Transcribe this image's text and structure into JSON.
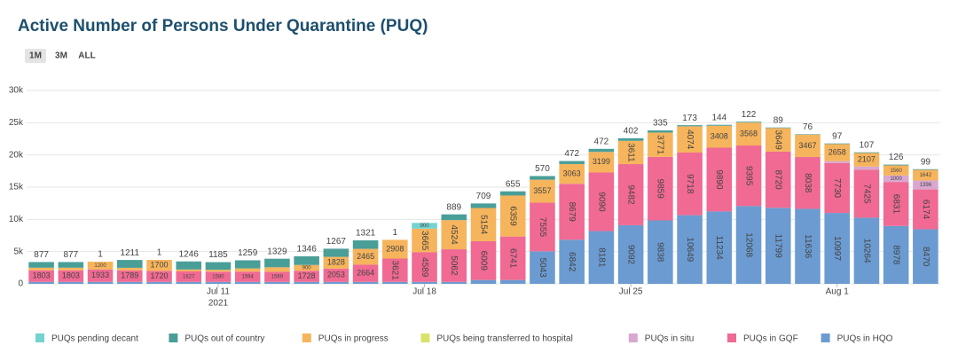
{
  "chart_data": {
    "type": "stacked_bar",
    "title": "Active Number of Persons Under Quarantine (PUQ)",
    "range_buttons": [
      "1M",
      "3M",
      "ALL"
    ],
    "x": [
      "2021-07-05",
      "2021-07-06",
      "2021-07-07",
      "2021-07-08",
      "2021-07-09",
      "2021-07-10",
      "2021-07-11",
      "2021-07-12",
      "2021-07-13",
      "2021-07-14",
      "2021-07-15",
      "2021-07-16",
      "2021-07-17",
      "2021-07-18",
      "2021-07-19",
      "2021-07-20",
      "2021-07-21",
      "2021-07-22",
      "2021-07-23",
      "2021-07-24",
      "2021-07-25",
      "2021-07-26",
      "2021-07-27",
      "2021-07-28",
      "2021-07-29",
      "2021-07-30",
      "2021-07-31",
      "2021-08-01",
      "2021-08-02",
      "2021-08-03",
      "2021-08-04"
    ],
    "xticks": [
      {
        "value": "2021-07-11",
        "label": "Jul 11"
      },
      {
        "value": "2021-07-18",
        "label": "Jul 18"
      },
      {
        "value": "2021-07-25",
        "label": "Jul 25"
      },
      {
        "value": "2021-08-01",
        "label": "Aug 1"
      }
    ],
    "xtick_year": "2021",
    "ylim": [
      0,
      30000
    ],
    "yticks": [
      0,
      {
        "value": 5000,
        "label": "5k"
      },
      {
        "value": 10000,
        "label": "10k"
      },
      {
        "value": 15000,
        "label": "15k"
      },
      {
        "value": 20000,
        "label": "20k"
      },
      {
        "value": 25000,
        "label": "25k"
      },
      {
        "value": 30000,
        "label": "30k"
      }
    ],
    "grid": true,
    "legend": "bottom",
    "series": [
      {
        "name": "PUQs pending decant",
        "color": "#72d3cf",
        "values": [
          null,
          null,
          null,
          null,
          null,
          null,
          null,
          null,
          null,
          null,
          null,
          null,
          null,
          900,
          null,
          null,
          null,
          null,
          null,
          null,
          null,
          null,
          null,
          null,
          null,
          null,
          null,
          null,
          null,
          null,
          null
        ]
      },
      {
        "name": "PUQs out of country",
        "color": "#4a9e98",
        "top_labels": true,
        "values": [
          877,
          877,
          1,
          1211,
          1,
          1246,
          1185,
          1259,
          1329,
          1346,
          1267,
          1321,
          1,
          null,
          889,
          709,
          655,
          570,
          472,
          472,
          402,
          335,
          173,
          144,
          122,
          89,
          76,
          97,
          107,
          126,
          99
        ]
      },
      {
        "name": "PUQs in progress",
        "color": "#f6b45c",
        "values": [
          400,
          400,
          1200,
          400,
          1700,
          300,
          300,
          500,
          700,
          900,
          1828,
          2465,
          2908,
          3665,
          4524,
          5154,
          6359,
          3557,
          3063,
          3199,
          3611,
          3771,
          4074,
          3408,
          3568,
          3649,
          3467,
          2658,
          2107,
          1560,
          1642
        ]
      },
      {
        "name": "PUQs being transferred to hospital",
        "color": "#d8e26b",
        "values": [
          null,
          null,
          null,
          null,
          null,
          null,
          null,
          null,
          null,
          null,
          null,
          null,
          null,
          null,
          null,
          null,
          null,
          null,
          null,
          null,
          null,
          null,
          null,
          null,
          null,
          null,
          null,
          null,
          null,
          null,
          null
        ]
      },
      {
        "name": "PUQs in situ",
        "color": "#d9a7d0",
        "values": [
          null,
          null,
          null,
          null,
          null,
          null,
          null,
          null,
          null,
          null,
          null,
          null,
          null,
          null,
          null,
          null,
          null,
          null,
          null,
          null,
          null,
          null,
          null,
          null,
          null,
          null,
          null,
          300,
          500,
          1000,
          1396
        ]
      },
      {
        "name": "PUQs in GQF",
        "color": "#f06a93",
        "values": [
          1803,
          1803,
          1933,
          1789,
          1720,
          1627,
          1580,
          1594,
          1569,
          1728,
          2053,
          2664,
          3621,
          4589,
          5062,
          6009,
          6741,
          7555,
          8679,
          9090,
          9482,
          9859,
          9718,
          9890,
          9395,
          8720,
          8038,
          7730,
          7425,
          6831,
          6174
        ]
      },
      {
        "name": "PUQs in HQO",
        "color": "#6b9bd1",
        "values": [
          300,
          300,
          300,
          300,
          300,
          300,
          300,
          300,
          300,
          300,
          300,
          300,
          300,
          300,
          300,
          600,
          600,
          5043,
          6842,
          8181,
          9092,
          9838,
          10649,
          11234,
          12068,
          11799,
          11636,
          10997,
          10264,
          8978,
          8470
        ]
      }
    ]
  }
}
